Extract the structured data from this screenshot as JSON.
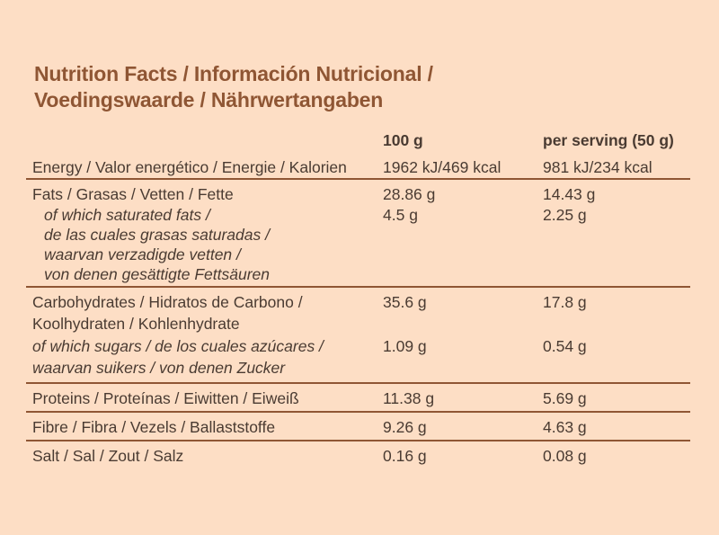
{
  "title": {
    "line1": "Nutrition Facts / Información Nutricional /",
    "line2": "Voedingswaarde / Nährwertangaben"
  },
  "header": {
    "col1": "100 g",
    "col2": "per serving (50 g)"
  },
  "energy": {
    "label": "Energy / Valor energético / Energie / Kalorien",
    "per100": "1962 kJ/469 kcal",
    "serving": "981 kJ/234 kcal"
  },
  "fats": {
    "label": "Fats / Grasas / Vetten / Fette",
    "per100": "28.86 g",
    "serving": "14.43 g",
    "sub": {
      "l1": "of which saturated fats /",
      "l2": "de las cuales grasas saturadas /",
      "l3": "waarvan verzadigde vetten /",
      "l4": "von denen gesättigte Fettsäuren",
      "per100": "4.5 g",
      "serving": "2.25 g"
    }
  },
  "carbs": {
    "l1": "Carbohydrates / Hidratos de Carbono /",
    "l2": "Koolhydraten / Kohlenhydrate",
    "per100": "35.6 g",
    "serving": "17.8 g",
    "sub": {
      "l1": "of which sugars / de los cuales azúcares /",
      "l2": "waarvan suikers / von denen Zucker",
      "per100": "1.09 g",
      "serving": "0.54 g"
    }
  },
  "proteins": {
    "label": "Proteins / Proteínas / Eiwitten / Eiweiß",
    "per100": "11.38 g",
    "serving": "5.69 g"
  },
  "fibre": {
    "label": "Fibre / Fibra / Vezels / Ballaststoffe",
    "per100": "9.26 g",
    "serving": "4.63 g"
  },
  "salt": {
    "label": "Salt / Sal / Zout / Salz",
    "per100": "0.16 g",
    "serving": "0.08 g"
  },
  "colors": {
    "background": "#fddec5",
    "accent": "#8f5634",
    "text": "#4a3b32"
  }
}
